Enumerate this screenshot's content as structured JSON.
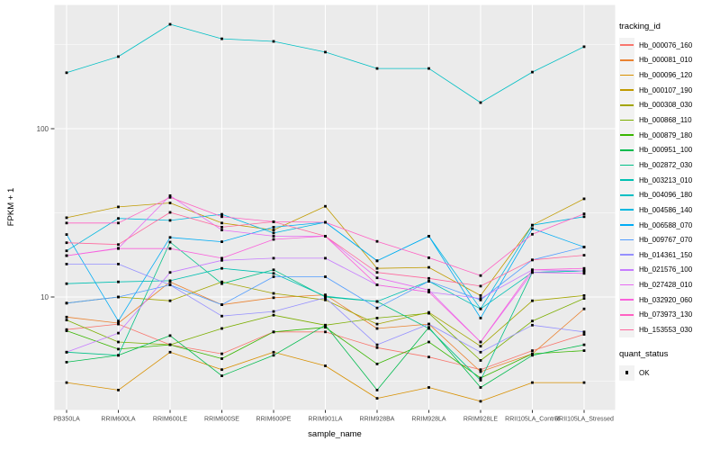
{
  "chart_data": {
    "type": "line",
    "title": "",
    "xlabel": "sample_name",
    "ylabel": "FPKM + 1",
    "legend_title": "tracking_id",
    "legend_position": "right",
    "y_scale": "log10",
    "y_ticks": [
      100,
      10
    ],
    "y_minor_gridlines": [
      3.1623,
      31.623,
      316.23
    ],
    "ylim": [
      2.1,
      560
    ],
    "grid": true,
    "panel_bg": "#EBEBEB",
    "grid_color": "#FFFFFF",
    "point_color": "#000000",
    "axis_text_color": "#4D4D4D",
    "point_marker": "black-square",
    "categories": [
      "PB350LA",
      "RRIM600LA",
      "RRIM600LE",
      "RRIM600SE",
      "RRIM600PE",
      "RRIM901LA",
      "RRIM928BA",
      "RRIM928LA",
      "RRIM928LE",
      "RRII105LA_Control",
      "RRII105LA_Stressed"
    ],
    "series": [
      {
        "name": "Hb_000076_160",
        "color": "#F8766D",
        "values": [
          6.4,
          6.9,
          5.2,
          4.6,
          6.2,
          6.2,
          5.0,
          4.4,
          3.7,
          4.8,
          6.0
        ]
      },
      {
        "name": "Hb_000081_010",
        "color": "#EA8331",
        "values": [
          7.6,
          7.0,
          12.3,
          9.0,
          9.9,
          10.3,
          6.5,
          6.9,
          3.6,
          4.6,
          8.5
        ]
      },
      {
        "name": "Hb_000096_120",
        "color": "#D89000",
        "values": [
          3.1,
          2.8,
          4.7,
          3.7,
          4.7,
          3.9,
          2.5,
          2.9,
          2.4,
          3.1,
          3.1
        ]
      },
      {
        "name": "Hb_000107_190",
        "color": "#C09B00",
        "values": [
          29.6,
          34.3,
          36.2,
          27.5,
          25.0,
          34.6,
          14.8,
          15.0,
          10.2,
          26.7,
          38.3
        ]
      },
      {
        "name": "Hb_000308_030",
        "color": "#A3A500",
        "values": [
          9.2,
          10.0,
          9.5,
          12.3,
          10.5,
          9.6,
          6.9,
          8.1,
          5.1,
          9.5,
          10.2
        ]
      },
      {
        "name": "Hb_000868_110",
        "color": "#7CAE00",
        "values": [
          7.3,
          5.4,
          5.2,
          6.5,
          7.8,
          6.8,
          7.5,
          8.0,
          4.2,
          7.2,
          9.8
        ]
      },
      {
        "name": "Hb_000879_180",
        "color": "#39B600",
        "values": [
          6.3,
          4.9,
          5.2,
          4.3,
          6.2,
          6.6,
          4.0,
          5.4,
          3.3,
          4.6,
          4.8
        ]
      },
      {
        "name": "Hb_000951_100",
        "color": "#00BB4E",
        "values": [
          4.1,
          4.5,
          5.9,
          3.4,
          4.5,
          6.8,
          2.8,
          6.6,
          2.9,
          4.5,
          5.2
        ]
      },
      {
        "name": "Hb_002872_030",
        "color": "#00C087",
        "values": [
          4.7,
          4.5,
          21.2,
          12.0,
          14.5,
          10.0,
          9.4,
          6.5,
          3.2,
          14.0,
          14.3
        ]
      },
      {
        "name": "Hb_003213_010",
        "color": "#00C0B2",
        "values": [
          12.0,
          12.3,
          12.5,
          14.8,
          13.8,
          10.1,
          9.4,
          12.4,
          8.5,
          14.0,
          14.3
        ]
      },
      {
        "name": "Hb_004096_180",
        "color": "#00BFC4",
        "values": [
          215,
          268,
          417,
          342,
          330,
          285,
          228,
          228,
          143,
          217,
          307
        ]
      },
      {
        "name": "Hb_004586_140",
        "color": "#00B8E0",
        "values": [
          18.8,
          29.3,
          28.5,
          31.0,
          24.0,
          27.8,
          16.4,
          23.0,
          8.5,
          26.7,
          30.0
        ]
      },
      {
        "name": "Hb_006588_070",
        "color": "#00ACF5",
        "values": [
          23.5,
          7.2,
          22.6,
          21.3,
          26.0,
          27.8,
          16.4,
          23.0,
          7.5,
          25.5,
          19.8
        ]
      },
      {
        "name": "Hb_009767_070",
        "color": "#519DFF",
        "values": [
          9.2,
          10.0,
          11.8,
          9.0,
          13.2,
          13.2,
          8.6,
          12.4,
          9.6,
          16.6,
          19.8
        ]
      },
      {
        "name": "Hb_014361_150",
        "color": "#9590FF",
        "values": [
          15.7,
          15.7,
          11.8,
          7.7,
          8.2,
          9.9,
          5.2,
          6.9,
          4.7,
          6.8,
          6.2
        ]
      },
      {
        "name": "Hb_021576_100",
        "color": "#C77CFF",
        "values": [
          4.7,
          6.1,
          14.0,
          16.5,
          17.0,
          17.0,
          11.8,
          10.7,
          9.8,
          14.5,
          14.3
        ]
      },
      {
        "name": "Hb_027428_010",
        "color": "#E76BF3",
        "values": [
          17.6,
          19.5,
          40.0,
          25.0,
          23.0,
          23.0,
          13.0,
          11.0,
          5.4,
          14.0,
          13.8
        ]
      },
      {
        "name": "Hb_032920_060",
        "color": "#FA62DB",
        "values": [
          17.6,
          19.4,
          19.4,
          17.0,
          22.0,
          23.0,
          11.8,
          10.7,
          5.4,
          14.5,
          14.8
        ]
      },
      {
        "name": "Hb_073973_130",
        "color": "#FF61C3",
        "values": [
          27.5,
          27.5,
          39.1,
          30.0,
          28.0,
          27.8,
          21.4,
          17.1,
          13.4,
          23.6,
          31.2
        ]
      },
      {
        "name": "Hb_153553_030",
        "color": "#FF689E",
        "values": [
          21.0,
          20.5,
          31.8,
          26.0,
          28.0,
          23.0,
          14.0,
          12.9,
          11.6,
          16.6,
          17.7
        ]
      }
    ]
  },
  "quant_legend": {
    "title": "quant_status",
    "items": [
      {
        "label": "OK",
        "marker": "black-square"
      }
    ]
  }
}
